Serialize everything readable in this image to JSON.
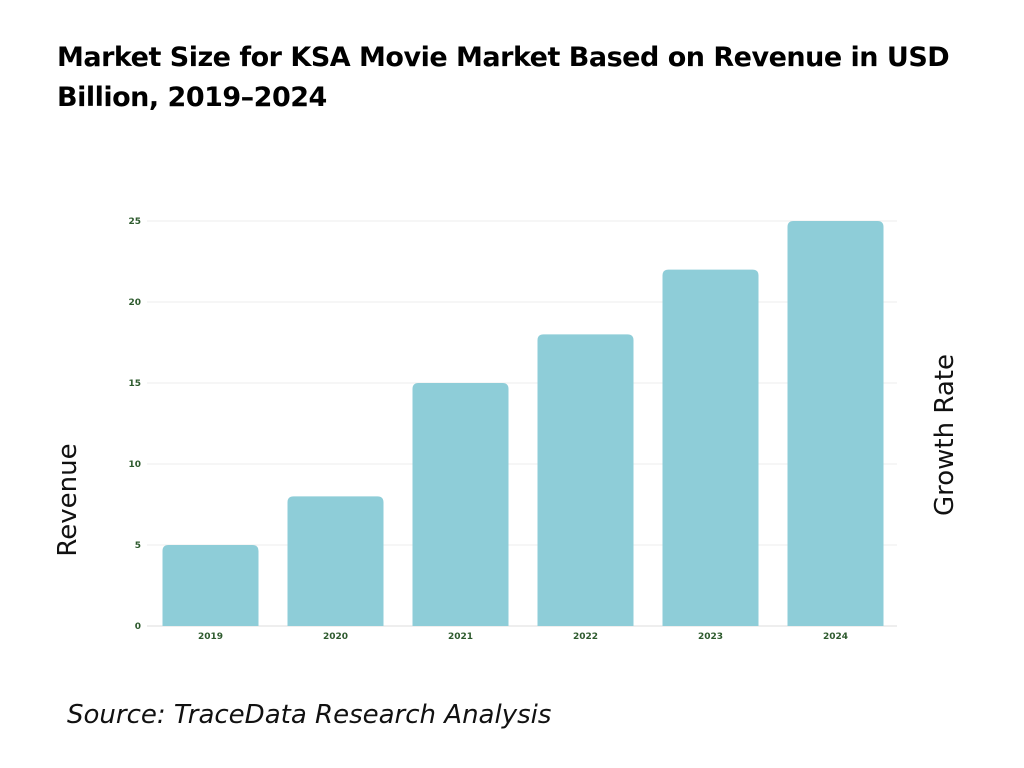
{
  "chart_data": {
    "type": "bar",
    "title": "Market Size for KSA Movie Market Based on Revenue in USD Billion, 2019–2024",
    "categories": [
      "2019",
      "2020",
      "2021",
      "2022",
      "2023",
      "2024"
    ],
    "values": [
      5,
      8,
      15,
      18,
      22,
      25
    ],
    "ylabel": "Revenue",
    "y2label": "Growth Rate",
    "xlabel": "",
    "ylim": [
      0,
      25
    ],
    "yticks": [
      0,
      5,
      10,
      15,
      20,
      25
    ],
    "grid": true,
    "bar_color": "#8ecdd8",
    "tick_color": "#2d5a2d"
  },
  "source": "Source: TraceData Research Analysis"
}
